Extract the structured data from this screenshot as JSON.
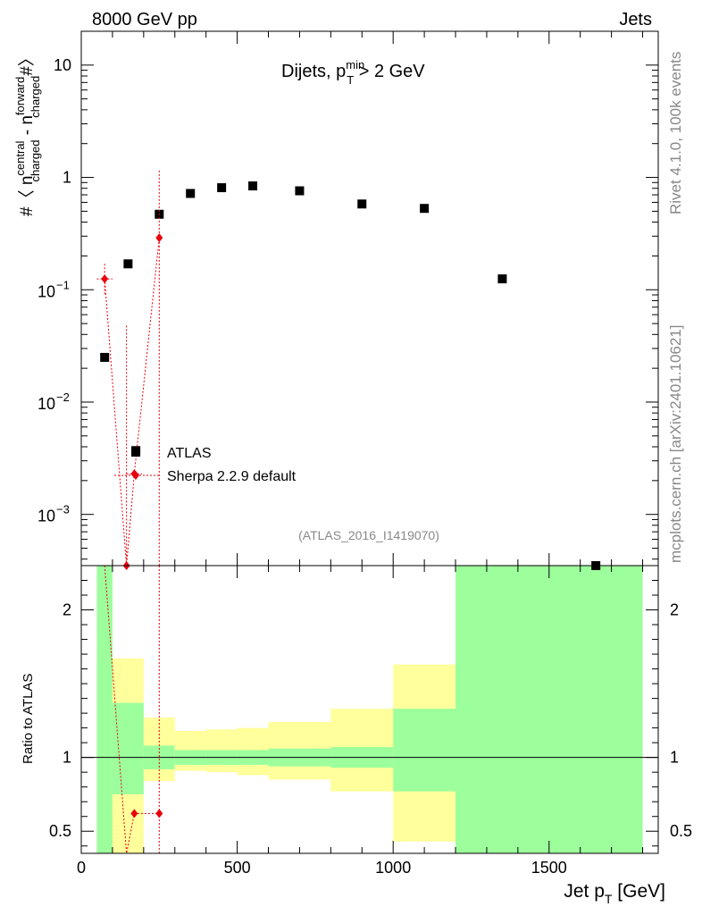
{
  "header": {
    "left": "8000 GeV pp",
    "right": "Jets"
  },
  "side_text": {
    "rivet": "Rivet 4.1.0,  100k events",
    "mcplots": "mcplots.cern.ch [arXiv:2401.10621]"
  },
  "analysis_tag": "(ATLAS_2016_I1419070)",
  "plot_title": {
    "prefix": "Dijets, p",
    "sup": "min",
    "sub": "T",
    "suffix": " > 2 GeV"
  },
  "y_label_top": {
    "a": "#〈 n",
    "sup1": "central",
    "sub1": "charged",
    "mid": " - n",
    "sup2": "forward",
    "sub2": "charged",
    "end": "#〉"
  },
  "y_label_bottom": "Ratio to ATLAS",
  "x_label": {
    "main": "Jet p",
    "sub": "T",
    "unit": " [GeV]"
  },
  "legend": [
    {
      "label": "ATLAS",
      "color": "#000000",
      "marker": "square"
    },
    {
      "label": "Sherpa 2.2.9 default",
      "color": "#e8000b",
      "marker": "diamond"
    }
  ],
  "colors": {
    "green": "#9cff9c",
    "yellow": "#ffff9c",
    "red": "#e8000b"
  },
  "chart_data": {
    "type": "scatter",
    "x_axis": {
      "label": "Jet p_T [GeV]",
      "range": [
        0,
        1850
      ],
      "ticks": [
        0,
        500,
        1000,
        1500
      ],
      "tick_labels": [
        "0",
        "500",
        "1000",
        "1500"
      ]
    },
    "top_panel": {
      "y_scale": "log",
      "y_range": [
        0.00035,
        20
      ],
      "y_tick_labels": [
        {
          "v": 0.001,
          "base": "10",
          "exp": "−3"
        },
        {
          "v": 0.01,
          "base": "10",
          "exp": "−2"
        },
        {
          "v": 0.1,
          "base": "10",
          "exp": "−1"
        },
        {
          "v": 1,
          "text": "1"
        },
        {
          "v": 10,
          "text": "10"
        }
      ],
      "series": [
        {
          "name": "ATLAS",
          "marker": "square",
          "x": [
            75,
            150,
            175,
            250,
            350,
            450,
            550,
            700,
            900,
            1100,
            1350,
            1650
          ],
          "y": [
            0.025,
            0.17,
            0.0037,
            0.47,
            0.72,
            0.81,
            0.84,
            0.76,
            0.58,
            0.53,
            0.125,
            0.00035
          ]
        },
        {
          "name": "Sherpa 2.2.9 default",
          "marker": "diamond",
          "x": [
            75,
            145,
            170,
            250
          ],
          "y": [
            0.125,
            0.00035,
            0.0023,
            0.29
          ],
          "y_err_hi": [
            0.17,
            0.048,
            0.0023,
            1.15
          ],
          "y_err_lo": [
            0.09,
            0.00035,
            0.0023,
            0.00035
          ],
          "x_err": [
            25,
            0,
            25,
            0
          ]
        }
      ]
    },
    "bottom_panel": {
      "y_scale": "linear",
      "y_range": [
        0.35,
        2.3
      ],
      "y_ticks": [
        0.5,
        1,
        2
      ],
      "y_tick_labels": [
        "0.5",
        "1",
        "2"
      ],
      "reference_line": 1,
      "bands": [
        {
          "x_lo": 50,
          "x_hi": 100,
          "green_lo": 0.35,
          "green_hi": 2.3,
          "yellow_lo": 0.35,
          "yellow_hi": 2.3
        },
        {
          "x_lo": 100,
          "x_hi": 200,
          "green_lo": 0.75,
          "green_hi": 1.37,
          "yellow_lo": 0.35,
          "yellow_hi": 1.67
        },
        {
          "x_lo": 200,
          "x_hi": 300,
          "green_lo": 0.92,
          "green_hi": 1.08,
          "yellow_lo": 0.84,
          "yellow_hi": 1.27
        },
        {
          "x_lo": 300,
          "x_hi": 400,
          "green_lo": 0.95,
          "green_hi": 1.05,
          "yellow_lo": 0.91,
          "yellow_hi": 1.18
        },
        {
          "x_lo": 400,
          "x_hi": 500,
          "green_lo": 0.95,
          "green_hi": 1.05,
          "yellow_lo": 0.9,
          "yellow_hi": 1.19
        },
        {
          "x_lo": 500,
          "x_hi": 600,
          "green_lo": 0.95,
          "green_hi": 1.05,
          "yellow_lo": 0.88,
          "yellow_hi": 1.2
        },
        {
          "x_lo": 600,
          "x_hi": 800,
          "green_lo": 0.94,
          "green_hi": 1.06,
          "yellow_lo": 0.85,
          "yellow_hi": 1.24
        },
        {
          "x_lo": 800,
          "x_hi": 1000,
          "green_lo": 0.93,
          "green_hi": 1.07,
          "yellow_lo": 0.77,
          "yellow_hi": 1.33
        },
        {
          "x_lo": 1000,
          "x_hi": 1200,
          "green_lo": 0.77,
          "green_hi": 1.33,
          "yellow_lo": 0.43,
          "yellow_hi": 1.63
        },
        {
          "x_lo": 1200,
          "x_hi": 1800,
          "green_lo": 0.35,
          "green_hi": 2.3,
          "yellow_lo": 0.35,
          "yellow_hi": 2.3
        }
      ],
      "ratio_series": {
        "name": "Sherpa 2.2.9 default / ATLAS",
        "x": [
          75,
          145,
          170,
          250
        ],
        "y": [
          6.0,
          0.1,
          0.62,
          0.62
        ],
        "y_err_hi": [
          6.0,
          0.35,
          0.35,
          2.3
        ],
        "y_err_lo": [
          2.3,
          0.35,
          0.35,
          0.35
        ]
      }
    }
  }
}
